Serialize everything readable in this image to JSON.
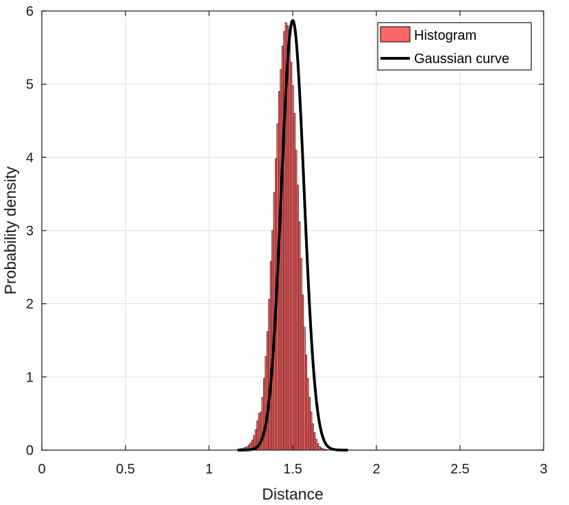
{
  "chart_data": {
    "type": "histogram",
    "xlabel": "Distance",
    "ylabel": "Probability density",
    "xlim": [
      0,
      3
    ],
    "ylim": [
      0,
      6
    ],
    "xticks": [
      0,
      0.5,
      1,
      1.5,
      2,
      2.5,
      3
    ],
    "xtick_labels": [
      "0",
      "0.5",
      "1",
      "1.5",
      "2",
      "2.5",
      "3"
    ],
    "yticks": [
      0,
      1,
      2,
      3,
      4,
      5,
      6
    ],
    "ytick_labels": [
      "0",
      "1",
      "2",
      "3",
      "4",
      "5",
      "6"
    ],
    "grid": true,
    "legend_position": "top-right",
    "series": [
      {
        "name": "Histogram",
        "kind": "bar",
        "color": "#ff6666",
        "edge_color": "#000000",
        "bin_width": 0.01,
        "x": [
          1.18,
          1.19,
          1.2,
          1.21,
          1.22,
          1.23,
          1.24,
          1.25,
          1.26,
          1.27,
          1.28,
          1.29,
          1.3,
          1.31,
          1.32,
          1.33,
          1.34,
          1.35,
          1.36,
          1.37,
          1.38,
          1.39,
          1.4,
          1.41,
          1.42,
          1.43,
          1.44,
          1.45,
          1.46,
          1.47,
          1.48,
          1.49,
          1.5,
          1.51,
          1.52,
          1.53,
          1.54,
          1.55,
          1.56,
          1.57,
          1.58,
          1.59,
          1.6,
          1.61,
          1.62,
          1.63,
          1.64,
          1.65,
          1.66,
          1.67,
          1.68,
          1.69,
          1.7,
          1.71,
          1.72,
          1.73,
          1.74,
          1.75
        ],
        "values": [
          0.01,
          0.02,
          0.02,
          0.03,
          0.04,
          0.05,
          0.07,
          0.1,
          0.14,
          0.2,
          0.28,
          0.4,
          0.5,
          0.52,
          0.72,
          0.98,
          1.28,
          1.62,
          2.06,
          2.58,
          3.0,
          3.52,
          3.98,
          4.46,
          4.9,
          5.2,
          5.52,
          5.72,
          5.84,
          5.8,
          5.62,
          5.3,
          4.98,
          4.6,
          4.1,
          3.62,
          3.12,
          2.62,
          2.12,
          1.68,
          1.3,
          0.98,
          0.72,
          0.52,
          0.36,
          0.24,
          0.15,
          0.09,
          0.05,
          0.03,
          0.02,
          0.01,
          0.01,
          0.0,
          0.0,
          0.0,
          0.0,
          0.0
        ]
      },
      {
        "name": "Gaussian curve",
        "kind": "line",
        "color": "#000000",
        "mu": 1.5,
        "sigma": 0.068,
        "peak": 5.87,
        "x_range": [
          1.17,
          1.83
        ]
      }
    ]
  }
}
